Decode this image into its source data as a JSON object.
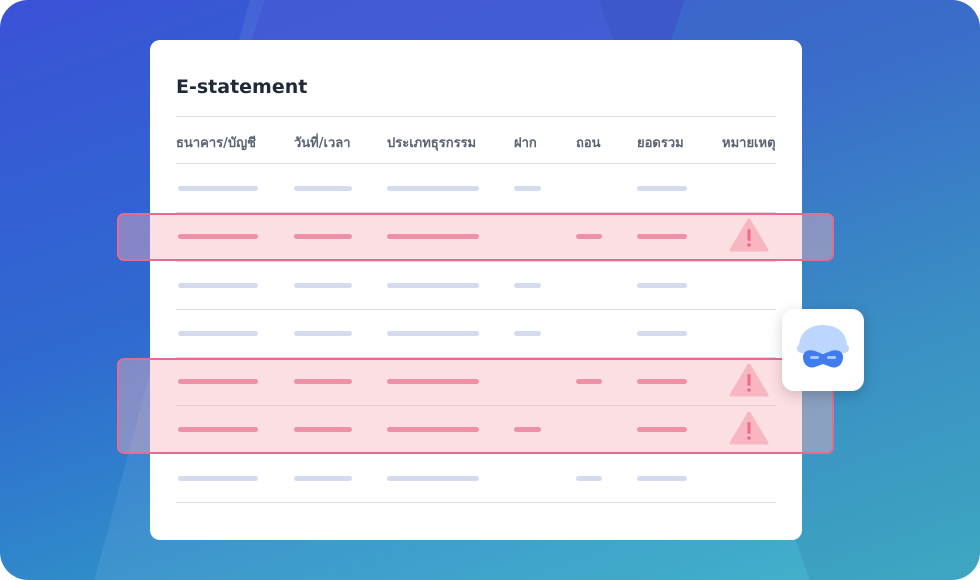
{
  "statement": {
    "title": "E-statement",
    "columns": [
      "ธนาคาร/บัญชี",
      "วันที่/เวลา",
      "ประเภทธุรกรรม",
      "ฝาก",
      "ถอน",
      "ยอดรวม",
      "หมายเหตุ"
    ]
  },
  "rows": [
    {
      "status": "normal",
      "cells": [
        "bank",
        "datetime",
        "type",
        "deposit",
        "",
        "total"
      ],
      "warning": false
    },
    {
      "status": "flagged",
      "cells": [
        "bank",
        "datetime",
        "type",
        "",
        "withdraw",
        "total"
      ],
      "warning": true
    },
    {
      "status": "normal",
      "cells": [
        "bank",
        "datetime",
        "type",
        "deposit",
        "",
        "total"
      ],
      "warning": false
    },
    {
      "status": "normal",
      "cells": [
        "bank",
        "datetime",
        "type",
        "deposit",
        "",
        "total"
      ],
      "warning": false
    },
    {
      "status": "flagged",
      "cells": [
        "bank",
        "datetime",
        "type",
        "",
        "withdraw",
        "total"
      ],
      "warning": true
    },
    {
      "status": "flagged",
      "cells": [
        "bank",
        "datetime",
        "type",
        "deposit",
        "",
        "total"
      ],
      "warning": true
    },
    {
      "status": "normal",
      "cells": [
        "bank",
        "datetime",
        "type",
        "",
        "withdraw",
        "total"
      ],
      "warning": false
    }
  ],
  "icons": {
    "warning": "warning-triangle-icon",
    "detector": "masked-bandit-icon"
  },
  "colors": {
    "flag_border": "#e36c92",
    "flag_fill": "#f7b2bc",
    "flag_bar": "#e77796",
    "normal_bar": "#d5dbef",
    "warning_accent": "#e7356a"
  }
}
